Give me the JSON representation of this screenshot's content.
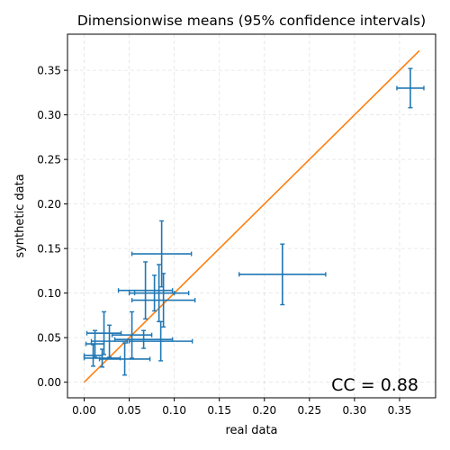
{
  "chart_data": {
    "type": "scatter",
    "title": "Dimensionwise means (95% confidence intervals)",
    "xlabel": "real data",
    "ylabel": "synthetic data",
    "xlim": [
      -0.0185,
      0.39
    ],
    "ylim": [
      -0.0175,
      0.3905
    ],
    "xticks": [
      0.0,
      0.05,
      0.1,
      0.15,
      0.2,
      0.25,
      0.3,
      0.35
    ],
    "xtick_labels": [
      "0.00",
      "0.05",
      "0.10",
      "0.15",
      "0.20",
      "0.25",
      "0.30",
      "0.35"
    ],
    "yticks": [
      0.0,
      0.05,
      0.1,
      0.15,
      0.2,
      0.25,
      0.3,
      0.35
    ],
    "ytick_labels": [
      "0.00",
      "0.05",
      "0.10",
      "0.15",
      "0.20",
      "0.25",
      "0.30",
      "0.35"
    ],
    "grid": true,
    "annotation": "CC = 0.88",
    "error_color": "#1f77b4",
    "line_color": "#ff7f0e",
    "reference_line": {
      "x": [
        0.0,
        0.372
      ],
      "y": [
        0.0,
        0.372
      ]
    },
    "points": [
      {
        "x": 0.362,
        "y": 0.33,
        "xerr": 0.015,
        "yerr": 0.022
      },
      {
        "x": 0.22,
        "y": 0.121,
        "xerr": 0.048,
        "yerr": 0.034
      },
      {
        "x": 0.086,
        "y": 0.144,
        "xerr": 0.033,
        "yerr": 0.037
      },
      {
        "x": 0.068,
        "y": 0.103,
        "xerr": 0.03,
        "yerr": 0.032
      },
      {
        "x": 0.083,
        "y": 0.1,
        "xerr": 0.033,
        "yerr": 0.032
      },
      {
        "x": 0.088,
        "y": 0.092,
        "xerr": 0.035,
        "yerr": 0.03
      },
      {
        "x": 0.078,
        "y": 0.1,
        "xerr": 0.022,
        "yerr": 0.02
      },
      {
        "x": 0.053,
        "y": 0.053,
        "xerr": 0.022,
        "yerr": 0.026
      },
      {
        "x": 0.085,
        "y": 0.046,
        "xerr": 0.035,
        "yerr": 0.022
      },
      {
        "x": 0.066,
        "y": 0.048,
        "xerr": 0.032,
        "yerr": 0.01
      },
      {
        "x": 0.022,
        "y": 0.055,
        "xerr": 0.019,
        "yerr": 0.024
      },
      {
        "x": 0.028,
        "y": 0.046,
        "xerr": 0.02,
        "yerr": 0.018
      },
      {
        "x": 0.012,
        "y": 0.043,
        "xerr": 0.01,
        "yerr": 0.015
      },
      {
        "x": 0.02,
        "y": 0.027,
        "xerr": 0.02,
        "yerr": 0.01
      },
      {
        "x": 0.045,
        "y": 0.026,
        "xerr": 0.028,
        "yerr": 0.018
      },
      {
        "x": 0.01,
        "y": 0.03,
        "xerr": 0.01,
        "yerr": 0.012
      }
    ]
  }
}
